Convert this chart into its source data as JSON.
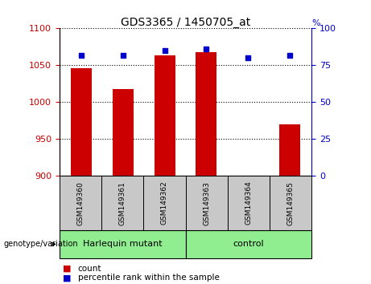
{
  "title": "GDS3365 / 1450705_at",
  "samples": [
    "GSM149360",
    "GSM149361",
    "GSM149362",
    "GSM149363",
    "GSM149364",
    "GSM149365"
  ],
  "counts": [
    1046,
    1018,
    1063,
    1068,
    901,
    970
  ],
  "percentile_ranks": [
    82,
    82,
    85,
    86,
    80,
    82
  ],
  "ylim_left": [
    900,
    1100
  ],
  "ylim_right": [
    0,
    100
  ],
  "yticks_left": [
    900,
    950,
    1000,
    1050,
    1100
  ],
  "yticks_right": [
    0,
    25,
    50,
    75,
    100
  ],
  "group1_label": "Harlequin mutant",
  "group2_label": "control",
  "group_color": "#90EE90",
  "sample_box_color": "#C8C8C8",
  "bar_color": "#CC0000",
  "dot_color": "#0000CC",
  "left_axis_color": "#CC0000",
  "right_axis_color": "#0000CC",
  "genotype_label": "genotype/variation",
  "legend_count_label": "count",
  "legend_percentile_label": "percentile rank within the sample"
}
